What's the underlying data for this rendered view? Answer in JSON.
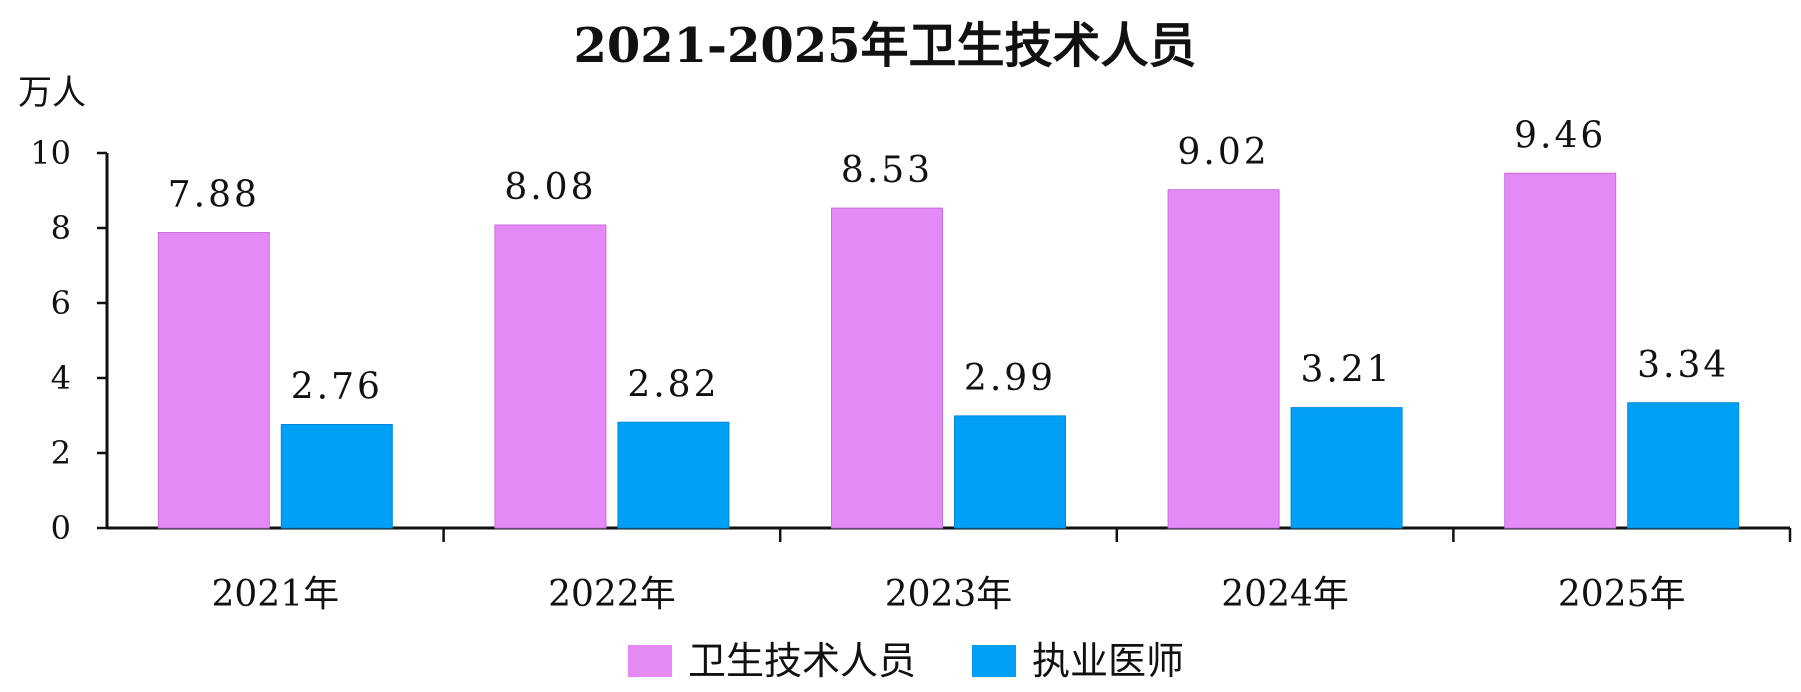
{
  "chart_data": {
    "type": "bar",
    "title": "2021-2025年卫生技术人员",
    "ylabel": "万人",
    "xlabel": "",
    "categories": [
      "2021年",
      "2022年",
      "2023年",
      "2024年",
      "2025年"
    ],
    "series": [
      {
        "name": "卫生技术人员",
        "color": "#e38af7",
        "values": [
          7.88,
          8.08,
          8.53,
          9.02,
          9.46
        ],
        "labels": [
          "7.88",
          "8.08",
          "8.53",
          "9.02",
          "9.46"
        ]
      },
      {
        "name": "执业医师",
        "color": "#00a0f6",
        "values": [
          2.76,
          2.82,
          2.99,
          3.21,
          3.34
        ],
        "labels": [
          "2.76",
          "2.82",
          "2.99",
          "3.21",
          "3.34"
        ]
      }
    ],
    "ylim": [
      0,
      10
    ],
    "yticks": [
      "0",
      "2",
      "4",
      "6",
      "8",
      "10"
    ],
    "grid": false,
    "legend_position": "bottom-center"
  }
}
